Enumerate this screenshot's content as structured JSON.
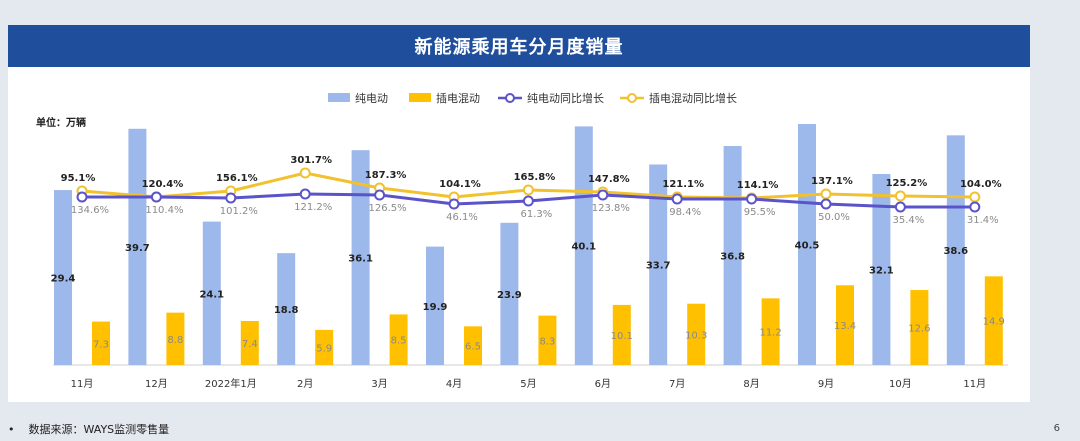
{
  "header": {
    "title": "新能源乘用车分月度销量"
  },
  "footer": {
    "bullet": "•",
    "source": "数据来源：WAYS监测零售量",
    "page": "6"
  },
  "colors": {
    "bev_bar": "#9db8ea",
    "phev_bar": "#ffc000",
    "bev_line": "#5a53c9",
    "phev_line": "#f2c12e",
    "label_dark": "#222222",
    "label_grey": "#8a8a8a"
  },
  "chart_data": {
    "type": "bar",
    "title": "新能源乘用车分月度销量",
    "unit_label": "单位：万辆",
    "categories": [
      "11月",
      "12月",
      "2022年1月",
      "2月",
      "3月",
      "4月",
      "5月",
      "6月",
      "7月",
      "8月",
      "9月",
      "10月",
      "11月"
    ],
    "legend": [
      "纯电动",
      "插电混动",
      "纯电动同比增长",
      "插电混动同比增长"
    ],
    "legend_position": "top-center",
    "series": [
      {
        "name": "纯电动",
        "type": "bar",
        "values": [
          29.4,
          39.7,
          24.1,
          18.8,
          36.1,
          19.9,
          23.9,
          40.1,
          33.7,
          36.8,
          40.5,
          32.1,
          38.6
        ],
        "labels": [
          "29.4",
          "39.7",
          "24.1",
          "18.8",
          "36.1",
          "19.9",
          "23.9",
          "40.1",
          "33.7",
          "36.8",
          "40.5",
          "32.1",
          "38.6"
        ]
      },
      {
        "name": "插电混动",
        "type": "bar",
        "values": [
          7.3,
          8.8,
          7.4,
          5.9,
          8.5,
          6.5,
          8.3,
          10.1,
          10.3,
          11.2,
          13.4,
          12.6,
          14.9
        ],
        "labels": [
          "7.3",
          "8.8",
          "7.4",
          "5.9",
          "8.5",
          "6.5",
          "8.3",
          "10.1",
          "10.3",
          "11.2",
          "13.4",
          "12.6",
          "14.9"
        ]
      },
      {
        "name": "纯电动同比增长",
        "type": "line",
        "values": [
          134.6,
          110.4,
          101.2,
          121.2,
          126.5,
          46.1,
          61.3,
          123.8,
          98.4,
          95.5,
          50.0,
          35.4,
          31.4
        ],
        "labels": [
          "134.6%",
          "110.4%",
          "101.2%",
          "121.2%",
          "126.5%",
          "46.1%",
          "61.3%",
          "123.8%",
          "98.4%",
          "95.5%",
          "50.0%",
          "35.4%",
          "31.4%"
        ]
      },
      {
        "name": "插电混动同比增长",
        "type": "line",
        "values": [
          95.1,
          120.4,
          156.1,
          301.7,
          187.3,
          104.1,
          165.8,
          147.8,
          121.1,
          114.1,
          137.1,
          125.2,
          104.0
        ],
        "labels": [
          "95.1%",
          "120.4%",
          "156.1%",
          "301.7%",
          "187.3%",
          "104.1%",
          "165.8%",
          "147.8%",
          "121.1%",
          "114.1%",
          "137.1%",
          "125.2%",
          "104.0%"
        ]
      }
    ]
  }
}
